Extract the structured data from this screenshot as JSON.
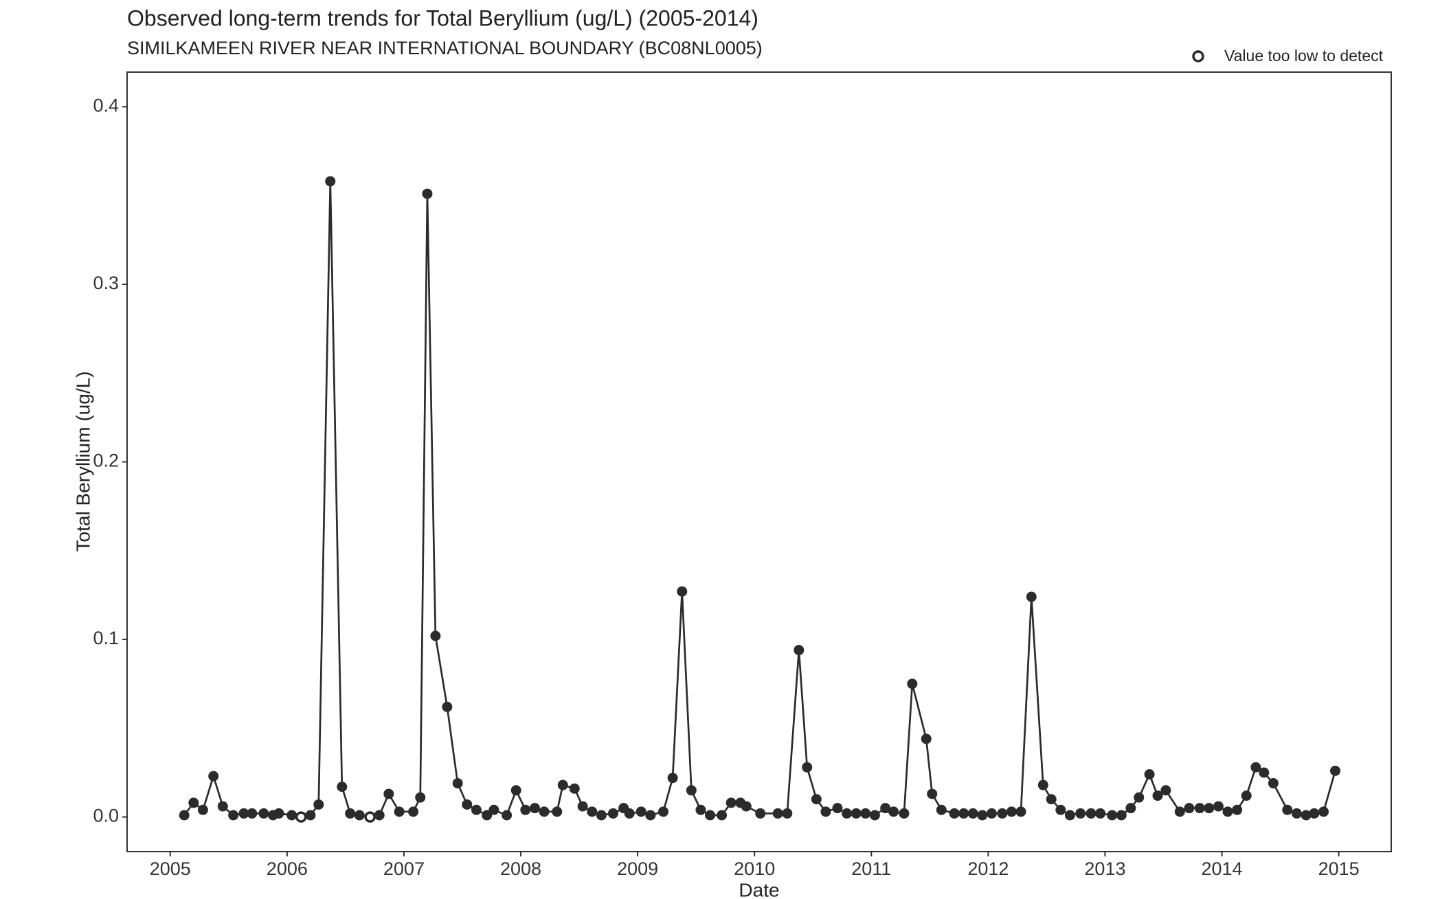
{
  "chart_data": {
    "type": "line",
    "title": "Observed long-term trends for Total Beryllium (ug/L) (2005-2014)",
    "subtitle": "SIMILKAMEEN RIVER NEAR INTERNATIONAL BOUNDARY (BC08NL0005)",
    "x_label": "Date",
    "y_label": "Total Beryllium (ug/L)",
    "legend": {
      "label": "Value too low to detect",
      "position": "top-right"
    },
    "xlim": [
      2004.631,
      2015.449
    ],
    "xticks": [
      2005,
      2006,
      2007,
      2008,
      2009,
      2010,
      2011,
      2012,
      2013,
      2014,
      2015
    ],
    "ylim": [
      -0.0195,
      0.4195
    ],
    "yticks": [
      {
        "value": 0,
        "label": "0.0"
      },
      0.1,
      0.2,
      0.3,
      0.4
    ],
    "grid": false,
    "series": [
      {
        "color": "#2b2b2b",
        "x": [
          2005.12,
          2005.2,
          2005.28,
          2005.37,
          2005.45,
          2005.54,
          2005.63,
          2005.7,
          2005.8,
          2005.88,
          2005.93,
          2006.04,
          2006.12,
          2006.2,
          2006.27,
          2006.37,
          2006.47,
          2006.54,
          2006.62,
          2006.71,
          2006.79,
          2006.87,
          2006.96,
          2007.08,
          2007.14,
          2007.2,
          2007.27,
          2007.37,
          2007.46,
          2007.54,
          2007.62,
          2007.71,
          2007.77,
          2007.88,
          2007.96,
          2008.04,
          2008.12,
          2008.2,
          2008.31,
          2008.36,
          2008.46,
          2008.53,
          2008.61,
          2008.69,
          2008.79,
          2008.88,
          2008.93,
          2009.03,
          2009.11,
          2009.22,
          2009.3,
          2009.38,
          2009.46,
          2009.54,
          2009.62,
          2009.72,
          2009.8,
          2009.88,
          2009.93,
          2010.05,
          2010.2,
          2010.28,
          2010.38,
          2010.45,
          2010.53,
          2010.61,
          2010.71,
          2010.79,
          2010.87,
          2010.95,
          2011.03,
          2011.12,
          2011.19,
          2011.28,
          2011.35,
          2011.47,
          2011.52,
          2011.6,
          2011.71,
          2011.79,
          2011.87,
          2011.95,
          2012.03,
          2012.12,
          2012.2,
          2012.28,
          2012.37,
          2012.47,
          2012.54,
          2012.62,
          2012.7,
          2012.79,
          2012.88,
          2012.96,
          2013.06,
          2013.14,
          2013.22,
          2013.29,
          2013.38,
          2013.45,
          2013.52,
          2013.64,
          2013.72,
          2013.81,
          2013.89,
          2013.97,
          2014.05,
          2014.13,
          2014.21,
          2014.29,
          2014.36,
          2014.44,
          2014.56,
          2014.64,
          2014.72,
          2014.79,
          2014.87,
          2014.97
        ],
        "values": [
          0.001,
          0.008,
          0.004,
          0.023,
          0.006,
          0.001,
          0.002,
          0.002,
          0.002,
          0.001,
          0.002,
          0.001,
          0.0,
          0.001,
          0.007,
          0.358,
          0.017,
          0.002,
          0.001,
          0.0,
          0.001,
          0.013,
          0.003,
          0.003,
          0.011,
          0.351,
          0.102,
          0.062,
          0.019,
          0.007,
          0.004,
          0.001,
          0.004,
          0.001,
          0.015,
          0.004,
          0.005,
          0.003,
          0.003,
          0.018,
          0.016,
          0.006,
          0.003,
          0.001,
          0.002,
          0.005,
          0.002,
          0.003,
          0.001,
          0.003,
          0.022,
          0.127,
          0.015,
          0.004,
          0.001,
          0.001,
          0.008,
          0.008,
          0.006,
          0.002,
          0.002,
          0.002,
          0.094,
          0.028,
          0.01,
          0.003,
          0.005,
          0.002,
          0.002,
          0.002,
          0.001,
          0.005,
          0.003,
          0.002,
          0.075,
          0.044,
          0.013,
          0.004,
          0.002,
          0.002,
          0.002,
          0.001,
          0.002,
          0.002,
          0.003,
          0.003,
          0.124,
          0.018,
          0.01,
          0.004,
          0.001,
          0.002,
          0.002,
          0.002,
          0.001,
          0.001,
          0.005,
          0.011,
          0.024,
          0.012,
          0.015,
          0.003,
          0.005,
          0.005,
          0.005,
          0.006,
          0.003,
          0.004,
          0.012,
          0.028,
          0.025,
          0.019,
          0.004,
          0.002,
          0.001,
          0.002,
          0.003,
          0.026
        ],
        "below_detection": [
          false,
          false,
          false,
          false,
          false,
          false,
          false,
          false,
          false,
          false,
          false,
          false,
          true,
          false,
          false,
          false,
          false,
          false,
          false,
          true,
          false,
          false,
          false,
          false,
          false,
          false,
          false,
          false,
          false,
          false,
          false,
          false,
          false,
          false,
          false,
          false,
          false,
          false,
          false,
          false,
          false,
          false,
          false,
          false,
          false,
          false,
          false,
          false,
          false,
          false,
          false,
          false,
          false,
          false,
          false,
          false,
          false,
          false,
          false,
          false,
          false,
          false,
          false,
          false,
          false,
          false,
          false,
          false,
          false,
          false,
          false,
          false,
          false,
          false,
          false,
          false,
          false,
          false,
          false,
          false,
          false,
          false,
          false,
          false,
          false,
          false,
          false,
          false,
          false,
          false,
          false,
          false,
          false,
          false,
          false,
          false,
          false,
          false,
          false,
          false,
          false,
          false,
          false,
          false,
          false,
          false,
          false,
          false,
          false,
          false,
          false,
          false,
          false,
          false,
          false,
          false,
          false,
          false
        ]
      }
    ]
  }
}
